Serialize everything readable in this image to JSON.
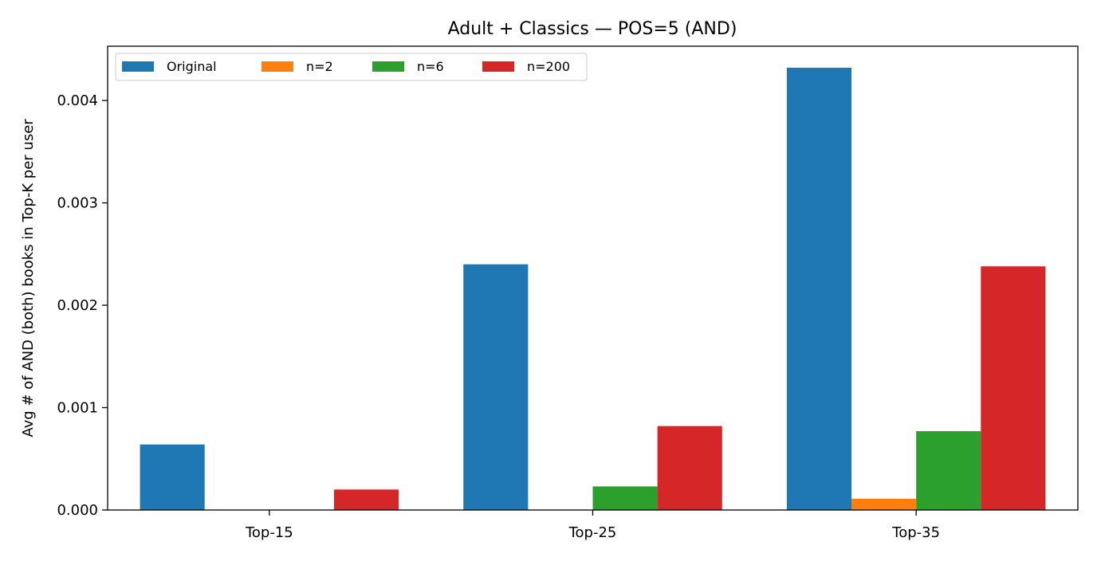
{
  "chart_data": {
    "type": "bar",
    "title": "Adult + Classics — POS=5 (AND)",
    "xlabel": "",
    "ylabel": "Avg # of AND (both) books in Top-K per user",
    "categories": [
      "Top-15",
      "Top-25",
      "Top-35"
    ],
    "series": [
      {
        "name": "Original",
        "color": "#1f77b4",
        "values": [
          0.00064,
          0.0024,
          0.00432
        ]
      },
      {
        "name": "n=2",
        "color": "#ff7f0e",
        "values": [
          0.0,
          0.0,
          0.00011
        ]
      },
      {
        "name": "n=6",
        "color": "#2ca02c",
        "values": [
          0.0,
          0.00023,
          0.00077
        ]
      },
      {
        "name": "n=200",
        "color": "#d62728",
        "values": [
          0.0002,
          0.00082,
          0.00238
        ]
      }
    ],
    "ylim": [
      0,
      0.00453
    ],
    "yticks": [
      0.0,
      0.001,
      0.002,
      0.003,
      0.004
    ],
    "ytick_labels": [
      "0.000",
      "0.001",
      "0.002",
      "0.003",
      "0.004"
    ],
    "grid": false,
    "legend": {
      "placement": "top-left",
      "columns": 4
    }
  }
}
